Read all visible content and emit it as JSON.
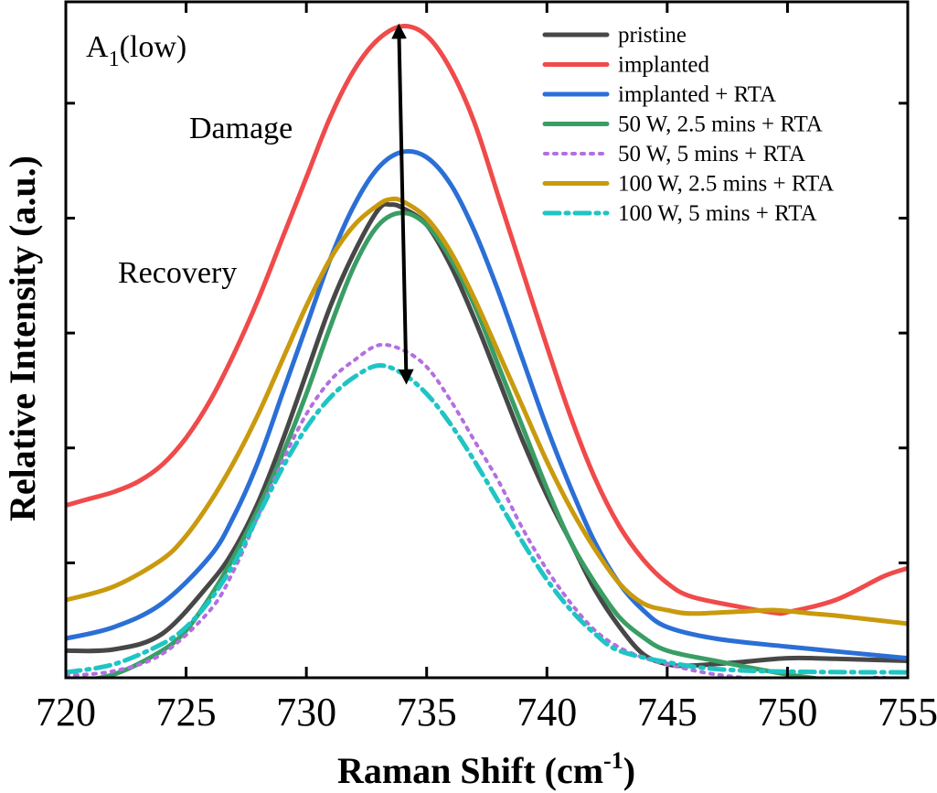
{
  "chart_data": {
    "type": "line",
    "panel_label": {
      "main": "A",
      "sub": "1",
      "rest": "(low)"
    },
    "xlabel": {
      "main": "Raman Shift (cm",
      "sup": "-1",
      "close": ")"
    },
    "ylabel": "Relative Intensity (a.u.)",
    "xlim": [
      720,
      755
    ],
    "ylim": [
      0,
      100
    ],
    "x_ticks": [
      720,
      725,
      730,
      735,
      740,
      745,
      750,
      755
    ],
    "y_ticks": [
      0,
      17,
      34,
      51,
      68,
      85
    ],
    "y_tick_labels_shown": false,
    "legend_position": "top-right",
    "annotations": {
      "damage": "Damage",
      "recovery": "Recovery",
      "arrow": {
        "x": 734,
        "from": 85,
        "to": 44.5
      }
    },
    "series": [
      {
        "name": "pristine",
        "color": "#474747",
        "dash": "solid",
        "points": [
          [
            720,
            4.0
          ],
          [
            722,
            4.2
          ],
          [
            724,
            6.5
          ],
          [
            726,
            14
          ],
          [
            727,
            19
          ],
          [
            728,
            26
          ],
          [
            729,
            35
          ],
          [
            730,
            45
          ],
          [
            731,
            55
          ],
          [
            732,
            63
          ],
          [
            733,
            69.3
          ],
          [
            733.5,
            70
          ],
          [
            734,
            69.5
          ],
          [
            735,
            67
          ],
          [
            736,
            61
          ],
          [
            737,
            53
          ],
          [
            738,
            44
          ],
          [
            739,
            35
          ],
          [
            740,
            27
          ],
          [
            741,
            20
          ],
          [
            742,
            13
          ],
          [
            743,
            7.6
          ],
          [
            744,
            3.5
          ],
          [
            745,
            2.0
          ],
          [
            746,
            1.8
          ],
          [
            748,
            2.3
          ],
          [
            750,
            2.9
          ],
          [
            752,
            2.8
          ],
          [
            755,
            2.5
          ]
        ]
      },
      {
        "name": "implanted",
        "color": "#f04a4a",
        "dash": "solid",
        "points": [
          [
            720,
            25.5
          ],
          [
            721,
            26.5
          ],
          [
            722,
            27.5
          ],
          [
            723,
            29.0
          ],
          [
            724,
            31.5
          ],
          [
            725,
            35.5
          ],
          [
            726,
            41
          ],
          [
            727,
            48
          ],
          [
            728,
            56
          ],
          [
            729,
            65
          ],
          [
            730,
            74
          ],
          [
            731,
            83
          ],
          [
            732,
            90
          ],
          [
            733,
            94.5
          ],
          [
            734,
            96.4
          ],
          [
            735,
            95
          ],
          [
            736,
            90
          ],
          [
            737,
            82
          ],
          [
            738,
            71
          ],
          [
            739,
            60
          ],
          [
            740,
            49
          ],
          [
            741,
            38.5
          ],
          [
            742,
            29.5
          ],
          [
            743,
            22.5
          ],
          [
            744,
            17.5
          ],
          [
            745,
            14
          ],
          [
            746,
            12
          ],
          [
            748,
            10.5
          ],
          [
            749.5,
            9.6
          ],
          [
            750,
            9.7
          ],
          [
            752,
            11.5
          ],
          [
            754,
            15
          ],
          [
            755,
            16.2
          ]
        ]
      },
      {
        "name": "implanted + RTA",
        "color": "#2b6fd6",
        "dash": "solid",
        "points": [
          [
            720,
            5.8
          ],
          [
            722,
            7.5
          ],
          [
            724,
            11
          ],
          [
            726,
            18
          ],
          [
            727,
            24
          ],
          [
            728,
            32
          ],
          [
            729,
            42
          ],
          [
            730,
            52
          ],
          [
            731,
            62
          ],
          [
            732,
            70
          ],
          [
            733,
            75.5
          ],
          [
            734,
            77.8
          ],
          [
            735,
            77
          ],
          [
            736,
            73
          ],
          [
            737,
            66
          ],
          [
            738,
            57
          ],
          [
            739,
            47
          ],
          [
            740,
            37
          ],
          [
            741,
            28
          ],
          [
            742,
            20
          ],
          [
            743,
            14
          ],
          [
            744,
            10
          ],
          [
            745,
            7.5
          ],
          [
            747,
            5.8
          ],
          [
            750,
            4.6
          ],
          [
            755,
            2.9
          ]
        ]
      },
      {
        "name": "50 W, 2.5 mins + RTA",
        "color": "#3a9e64",
        "dash": "solid",
        "points": [
          [
            720,
            -0.8
          ],
          [
            722,
            0.5
          ],
          [
            724,
            4
          ],
          [
            725,
            7
          ],
          [
            726,
            12
          ],
          [
            727,
            18
          ],
          [
            728,
            25
          ],
          [
            729,
            33
          ],
          [
            730,
            42
          ],
          [
            731,
            52
          ],
          [
            732,
            61
          ],
          [
            733,
            67
          ],
          [
            734,
            68.8
          ],
          [
            735,
            67
          ],
          [
            736,
            62
          ],
          [
            737,
            55
          ],
          [
            738,
            46
          ],
          [
            739,
            37
          ],
          [
            740,
            28
          ],
          [
            741,
            20
          ],
          [
            742,
            14
          ],
          [
            743,
            9
          ],
          [
            744,
            6
          ],
          [
            745,
            4
          ],
          [
            747,
            2.5
          ],
          [
            750,
            0.5
          ],
          [
            753,
            -0.8
          ],
          [
            755,
            -1.0
          ]
        ]
      },
      {
        "name": "50 W, 5 mins + RTA",
        "color": "#b36fe0",
        "dash": "dot",
        "points": [
          [
            720,
            0.3
          ],
          [
            722,
            1.0
          ],
          [
            724,
            3.5
          ],
          [
            726,
            10
          ],
          [
            727,
            16
          ],
          [
            728,
            24
          ],
          [
            729,
            32
          ],
          [
            730,
            39
          ],
          [
            731,
            44
          ],
          [
            732,
            47
          ],
          [
            733,
            49.2
          ],
          [
            734,
            48.5
          ],
          [
            735,
            46
          ],
          [
            736,
            41
          ],
          [
            737,
            35
          ],
          [
            738,
            29
          ],
          [
            739,
            22
          ],
          [
            740,
            16
          ],
          [
            741,
            11
          ],
          [
            742,
            7
          ],
          [
            743,
            4.5
          ],
          [
            744,
            3
          ],
          [
            745,
            2
          ],
          [
            747,
            0.5
          ],
          [
            750,
            -0.5
          ],
          [
            752,
            -0.5
          ],
          [
            754,
            0
          ],
          [
            755,
            -1.5
          ]
        ]
      },
      {
        "name": "100 W, 2.5 mins + RTA",
        "color": "#c99a0e",
        "dash": "solid",
        "points": [
          [
            720,
            11.5
          ],
          [
            722,
            13.5
          ],
          [
            724,
            17.5
          ],
          [
            725,
            21
          ],
          [
            726,
            26
          ],
          [
            727,
            32
          ],
          [
            728,
            39
          ],
          [
            729,
            47
          ],
          [
            730,
            55
          ],
          [
            731,
            62
          ],
          [
            732,
            67
          ],
          [
            733,
            70
          ],
          [
            733.5,
            70.8
          ],
          [
            734,
            70.5
          ],
          [
            735,
            68
          ],
          [
            736,
            63
          ],
          [
            737,
            56
          ],
          [
            738,
            48
          ],
          [
            739,
            40
          ],
          [
            740,
            32
          ],
          [
            741,
            25
          ],
          [
            742,
            19
          ],
          [
            743,
            14
          ],
          [
            744,
            11
          ],
          [
            745,
            10
          ],
          [
            746,
            9.5
          ],
          [
            748,
            9.8
          ],
          [
            749.5,
            10
          ],
          [
            751,
            9.5
          ],
          [
            752,
            9.2
          ],
          [
            755,
            8.0
          ]
        ]
      },
      {
        "name": "100 W, 5 mins + RTA",
        "color": "#1fc4c4",
        "dash": "dashdot",
        "points": [
          [
            720,
            0.8
          ],
          [
            722,
            2.0
          ],
          [
            724,
            5
          ],
          [
            725,
            7.5
          ],
          [
            726,
            11.5
          ],
          [
            727,
            17
          ],
          [
            728,
            24
          ],
          [
            729,
            31
          ],
          [
            730,
            37
          ],
          [
            731,
            41.5
          ],
          [
            732,
            44.5
          ],
          [
            733,
            46.2
          ],
          [
            734,
            45
          ],
          [
            735,
            42
          ],
          [
            736,
            37.5
          ],
          [
            737,
            32
          ],
          [
            738,
            26
          ],
          [
            739,
            20
          ],
          [
            740,
            14.5
          ],
          [
            741,
            10
          ],
          [
            742,
            6.5
          ],
          [
            743,
            4
          ],
          [
            745,
            2.3
          ],
          [
            747,
            1.3
          ],
          [
            750,
            0.9
          ],
          [
            755,
            0.8
          ]
        ]
      }
    ]
  }
}
